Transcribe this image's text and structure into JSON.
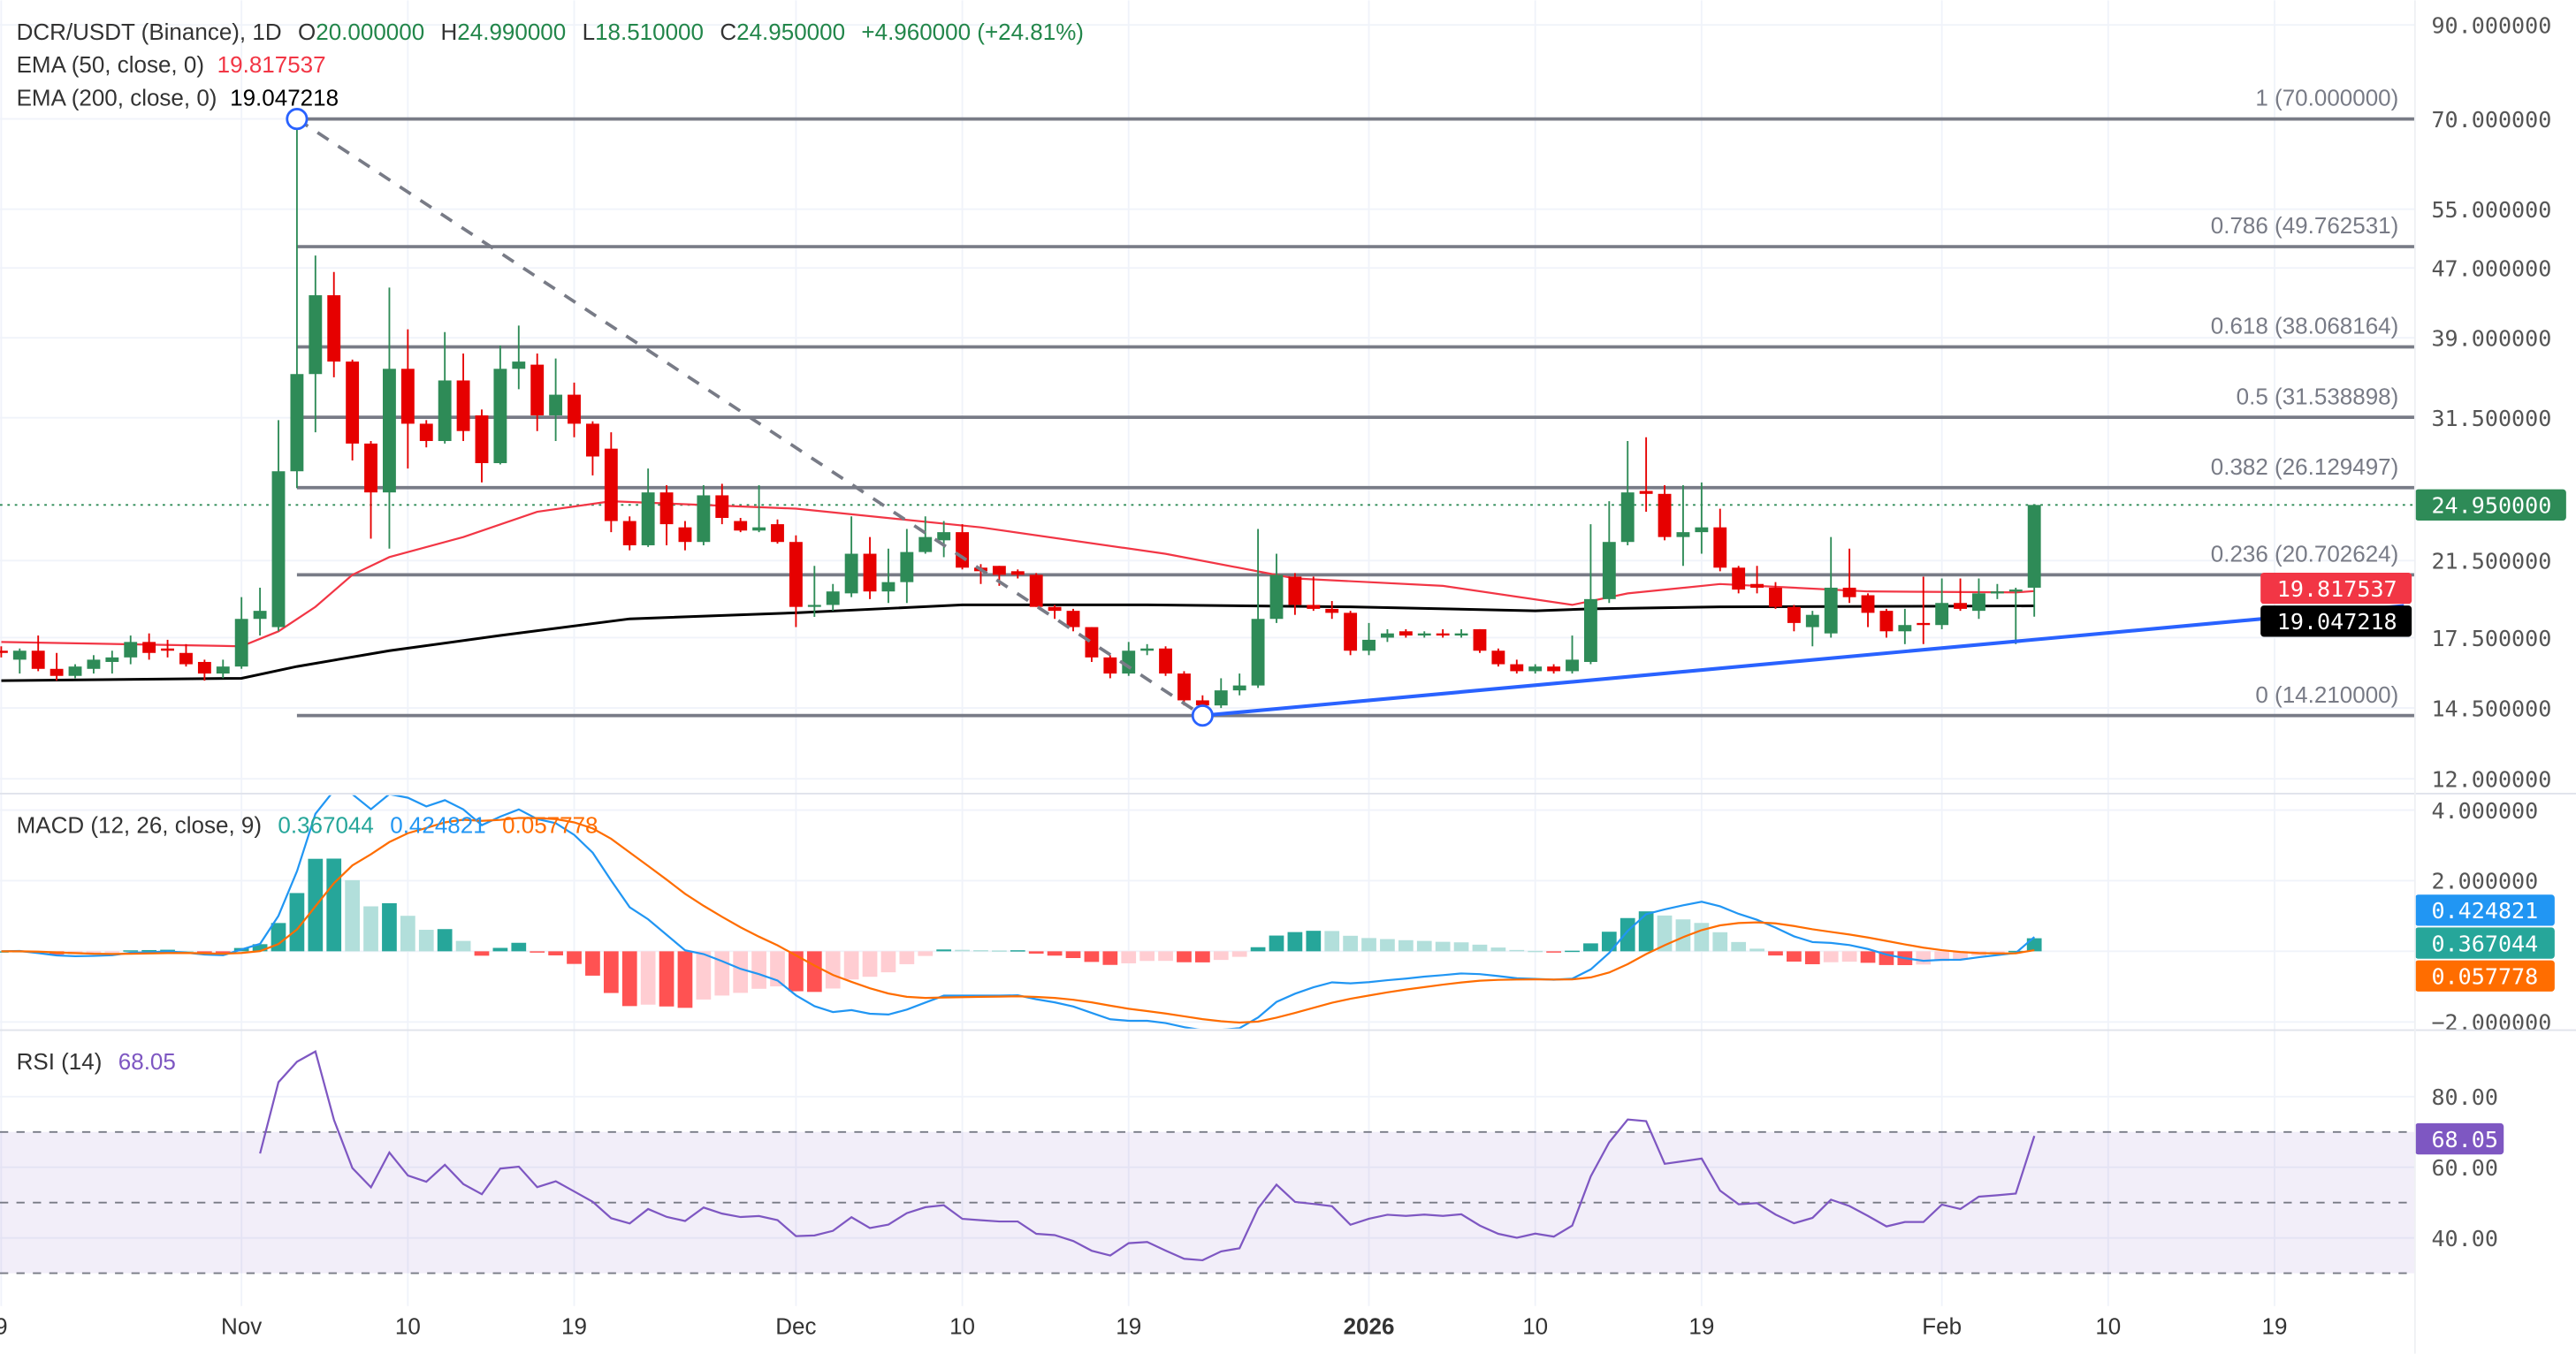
{
  "legend": {
    "symbol": "DCR/USDT (Binance), 1D",
    "o_label": "O",
    "o": "20.000000",
    "h_label": "H",
    "h": "24.990000",
    "l_label": "L",
    "l": "18.510000",
    "c_label": "C",
    "c": "24.950000",
    "change": "+4.960000 (+24.81%)",
    "ema50_label": "EMA (50, close, 0)",
    "ema50_value": "19.817537",
    "ema200_label": "EMA (200, close, 0)",
    "ema200_value": "19.047218",
    "macd_label": "MACD (12, 26, close, 9)",
    "macd_hist": "0.367044",
    "macd_line": "0.424821",
    "macd_signal": "0.057778",
    "rsi_label": "RSI (14)",
    "rsi_value": "68.05"
  },
  "colors": {
    "up": "#2e8b57",
    "down": "#e60000",
    "ema50": "#f23645",
    "ema200": "#000000",
    "macd": "#2196f3",
    "signal": "#ff6d00",
    "hist_up": "#26a69a",
    "hist_up_light": "#b2dfdb",
    "hist_down": "#ff5252",
    "hist_down_light": "#ffcdd2",
    "rsi": "#7e57c2",
    "fib": "#787b86",
    "trend": "#2962ff"
  },
  "price_axis": {
    "scale": "log",
    "ticks": [
      {
        "label": "90.000000",
        "value": 90
      },
      {
        "label": "70.000000",
        "value": 70
      },
      {
        "label": "55.000000",
        "value": 55
      },
      {
        "label": "47.000000",
        "value": 47
      },
      {
        "label": "39.000000",
        "value": 39
      },
      {
        "label": "31.500000",
        "value": 31.5
      },
      {
        "label": "21.500000",
        "value": 21.5
      },
      {
        "label": "17.500000",
        "value": 17.5
      },
      {
        "label": "14.500000",
        "value": 14.5
      },
      {
        "label": "12.000000",
        "value": 12
      }
    ],
    "badges": [
      {
        "label": "24.950000",
        "value": 24.95,
        "color": "#2e8b57"
      },
      {
        "label": "19.817537",
        "value": 19.817537,
        "color": "#f23645"
      },
      {
        "label": "19.047218",
        "value": 19.047218,
        "color": "#000000"
      }
    ]
  },
  "macd_axis": {
    "ticks": [
      {
        "label": "4.000000",
        "value": 4
      },
      {
        "label": "2.000000",
        "value": 2
      },
      {
        "label": "−2.000000",
        "value": -2
      }
    ],
    "badges": [
      {
        "label": "0.424821",
        "color": "#2196f3"
      },
      {
        "label": "0.367044",
        "color": "#26a69a"
      },
      {
        "label": "0.057778",
        "color": "#ff6d00"
      }
    ]
  },
  "rsi_axis": {
    "ticks": [
      {
        "label": "80.00",
        "value": 80
      },
      {
        "label": "60.00",
        "value": 60
      },
      {
        "label": "40.00",
        "value": 40
      }
    ],
    "bands": [
      70,
      50,
      30
    ],
    "badge": {
      "label": "68.05",
      "value": 68.05,
      "color": "#7e57c2"
    }
  },
  "time_axis": [
    {
      "label": "9",
      "date": "2025-10-19"
    },
    {
      "label": "Nov",
      "date": "2025-11-01"
    },
    {
      "label": "10",
      "date": "2025-11-10"
    },
    {
      "label": "19",
      "date": "2025-11-19"
    },
    {
      "label": "Dec",
      "date": "2025-12-01"
    },
    {
      "label": "10",
      "date": "2025-12-10"
    },
    {
      "label": "19",
      "date": "2025-12-19"
    },
    {
      "label": "2026",
      "date": "2026-01-01",
      "bold": true
    },
    {
      "label": "10",
      "date": "2026-01-10"
    },
    {
      "label": "19",
      "date": "2026-01-19"
    },
    {
      "label": "Feb",
      "date": "2026-02-01"
    },
    {
      "label": "10",
      "date": "2026-02-10"
    },
    {
      "label": "19",
      "date": "2026-02-19"
    }
  ],
  "fib_levels": [
    {
      "label": "1 (70.000000)",
      "value": 70
    },
    {
      "label": "0.786 (49.762531)",
      "value": 49.762531
    },
    {
      "label": "0.618 (38.068164)",
      "value": 38.068164
    },
    {
      "label": "0.5 (31.538898)",
      "value": 31.538898
    },
    {
      "label": "0.382 (26.129497)",
      "value": 26.129497
    },
    {
      "label": "0.236 (20.702624)",
      "value": 20.702624
    },
    {
      "label": "0 (14.210000)",
      "value": 14.21
    }
  ],
  "drawings": {
    "fib_start": {
      "date": "2025-11-04",
      "value": 70
    },
    "fib_end": {
      "date": "2025-12-23",
      "value": 14.21
    },
    "trendline": {
      "from": {
        "date": "2025-12-23",
        "value": 14.21
      },
      "to": {
        "date": "2026-02-26",
        "value": 19.05
      }
    }
  },
  "chart_data": {
    "type": "candlestick",
    "title": "DCR/USDT (Binance), 1D",
    "yscale": "log",
    "ylim": [
      12,
      90
    ],
    "candles": [
      [
        "2025-10-19",
        16.9,
        17.1,
        16.6,
        16.8
      ],
      [
        "2025-10-20",
        16.5,
        17.0,
        15.9,
        16.9
      ],
      [
        "2025-10-21",
        16.9,
        17.6,
        16.0,
        16.1
      ],
      [
        "2025-10-22",
        16.1,
        16.8,
        15.6,
        15.8
      ],
      [
        "2025-10-23",
        15.8,
        16.3,
        15.7,
        16.2
      ],
      [
        "2025-10-24",
        16.1,
        16.7,
        15.9,
        16.5
      ],
      [
        "2025-10-25",
        16.4,
        16.9,
        15.9,
        16.6
      ],
      [
        "2025-10-26",
        16.6,
        17.6,
        16.3,
        17.3
      ],
      [
        "2025-10-27",
        17.3,
        17.7,
        16.5,
        16.8
      ],
      [
        "2025-10-28",
        17.0,
        17.4,
        16.6,
        16.9
      ],
      [
        "2025-10-29",
        16.8,
        17.2,
        16.2,
        16.3
      ],
      [
        "2025-10-30",
        16.4,
        16.5,
        15.6,
        15.9
      ],
      [
        "2025-10-31",
        15.9,
        16.5,
        15.7,
        16.2
      ],
      [
        "2025-11-01",
        16.2,
        19.5,
        16.1,
        18.4
      ],
      [
        "2025-11-02",
        18.4,
        20.0,
        17.6,
        18.8
      ],
      [
        "2025-11-03",
        18.0,
        31.3,
        17.8,
        27.3
      ],
      [
        "2025-11-04",
        27.3,
        70.0,
        26.1,
        35.4
      ],
      [
        "2025-11-05",
        35.4,
        48.6,
        30.3,
        43.7
      ],
      [
        "2025-11-06",
        43.7,
        46.5,
        35.1,
        36.6
      ],
      [
        "2025-11-07",
        36.6,
        36.8,
        28.1,
        29.4
      ],
      [
        "2025-11-08",
        29.4,
        29.6,
        22.8,
        25.8
      ],
      [
        "2025-11-09",
        25.8,
        44.6,
        22.2,
        35.9
      ],
      [
        "2025-11-10",
        35.9,
        39.9,
        27.5,
        31.0
      ],
      [
        "2025-11-11",
        31.0,
        31.3,
        29.1,
        29.6
      ],
      [
        "2025-11-12",
        29.6,
        39.6,
        29.4,
        34.8
      ],
      [
        "2025-11-13",
        34.8,
        37.4,
        29.6,
        30.4
      ],
      [
        "2025-11-14",
        31.7,
        32.2,
        26.5,
        27.9
      ],
      [
        "2025-11-15",
        27.9,
        38.2,
        27.8,
        35.9
      ],
      [
        "2025-11-16",
        35.9,
        40.3,
        34.0,
        36.6
      ],
      [
        "2025-11-17",
        36.3,
        37.4,
        30.4,
        31.7
      ],
      [
        "2025-11-18",
        31.7,
        36.9,
        29.6,
        33.5
      ],
      [
        "2025-11-19",
        33.5,
        34.6,
        29.9,
        31.0
      ],
      [
        "2025-11-20",
        31.0,
        31.2,
        27.0,
        28.4
      ],
      [
        "2025-11-21",
        29.0,
        30.3,
        23.2,
        23.9
      ],
      [
        "2025-11-22",
        23.9,
        24.2,
        22.1,
        22.4
      ],
      [
        "2025-11-23",
        22.4,
        27.5,
        22.3,
        25.8
      ],
      [
        "2025-11-24",
        25.8,
        26.3,
        22.4,
        23.7
      ],
      [
        "2025-11-25",
        23.5,
        23.9,
        22.1,
        22.6
      ],
      [
        "2025-11-26",
        22.6,
        26.3,
        22.4,
        25.6
      ],
      [
        "2025-11-27",
        25.6,
        26.4,
        23.7,
        24.1
      ],
      [
        "2025-11-28",
        23.9,
        24.1,
        23.2,
        23.3
      ],
      [
        "2025-11-29",
        23.3,
        26.3,
        23.2,
        23.5
      ],
      [
        "2025-11-30",
        23.7,
        24.0,
        22.5,
        22.6
      ],
      [
        "2025-12-01",
        22.6,
        23.0,
        18.0,
        19.0
      ],
      [
        "2025-12-02",
        19.0,
        21.2,
        18.5,
        19.1
      ],
      [
        "2025-12-03",
        19.1,
        20.2,
        18.8,
        19.8
      ],
      [
        "2025-12-04",
        19.7,
        24.2,
        19.5,
        21.9
      ],
      [
        "2025-12-05",
        21.9,
        22.9,
        19.4,
        19.8
      ],
      [
        "2025-12-06",
        19.8,
        22.2,
        19.2,
        20.3
      ],
      [
        "2025-12-07",
        20.3,
        23.4,
        19.2,
        22.0
      ],
      [
        "2025-12-08",
        22.0,
        24.2,
        21.9,
        22.9
      ],
      [
        "2025-12-09",
        22.7,
        23.9,
        21.7,
        23.2
      ],
      [
        "2025-12-10",
        23.2,
        23.7,
        21.0,
        21.1
      ],
      [
        "2025-12-11",
        21.1,
        21.3,
        20.2,
        20.9
      ],
      [
        "2025-12-12",
        21.2,
        21.2,
        20.1,
        20.7
      ],
      [
        "2025-12-13",
        20.9,
        21.0,
        20.5,
        20.7
      ],
      [
        "2025-12-14",
        20.7,
        20.8,
        19.0,
        19.0
      ],
      [
        "2025-12-15",
        19.0,
        19.1,
        18.4,
        18.8
      ],
      [
        "2025-12-16",
        18.8,
        18.9,
        17.8,
        18.0
      ],
      [
        "2025-12-17",
        18.0,
        18.0,
        16.4,
        16.6
      ],
      [
        "2025-12-18",
        16.6,
        16.7,
        15.7,
        15.9
      ],
      [
        "2025-12-19",
        15.9,
        17.3,
        15.8,
        16.9
      ],
      [
        "2025-12-20",
        16.9,
        17.2,
        16.7,
        17.0
      ],
      [
        "2025-12-21",
        17.0,
        17.1,
        15.8,
        15.9
      ],
      [
        "2025-12-22",
        15.9,
        16.0,
        14.6,
        14.8
      ],
      [
        "2025-12-23",
        14.8,
        15.0,
        14.21,
        14.6
      ],
      [
        "2025-12-24",
        14.6,
        15.7,
        14.5,
        15.2
      ],
      [
        "2025-12-25",
        15.2,
        15.9,
        15.0,
        15.4
      ],
      [
        "2025-12-26",
        15.4,
        23.4,
        15.3,
        18.4
      ],
      [
        "2025-12-27",
        18.4,
        21.9,
        18.2,
        20.7
      ],
      [
        "2025-12-28",
        20.6,
        20.8,
        18.6,
        19.1
      ],
      [
        "2025-12-29",
        19.1,
        20.6,
        18.8,
        18.9
      ],
      [
        "2025-12-30",
        18.9,
        19.3,
        18.4,
        18.7
      ],
      [
        "2025-12-31",
        18.7,
        18.8,
        16.7,
        16.9
      ],
      [
        "2026-01-01",
        16.9,
        18.2,
        16.7,
        17.4
      ],
      [
        "2026-01-02",
        17.5,
        17.9,
        17.3,
        17.7
      ],
      [
        "2026-01-03",
        17.8,
        17.9,
        17.5,
        17.6
      ],
      [
        "2026-01-04",
        17.6,
        17.8,
        17.5,
        17.7
      ],
      [
        "2026-01-05",
        17.7,
        17.9,
        17.5,
        17.6
      ],
      [
        "2026-01-06",
        17.6,
        17.9,
        17.5,
        17.7
      ],
      [
        "2026-01-07",
        17.9,
        17.9,
        16.8,
        16.9
      ],
      [
        "2026-01-08",
        16.9,
        17.0,
        16.2,
        16.3
      ],
      [
        "2026-01-09",
        16.3,
        16.5,
        15.9,
        16.0
      ],
      [
        "2026-01-10",
        16.0,
        16.3,
        15.9,
        16.2
      ],
      [
        "2026-01-11",
        16.2,
        16.3,
        15.9,
        16.0
      ],
      [
        "2026-01-12",
        16.0,
        17.6,
        15.9,
        16.5
      ],
      [
        "2026-01-13",
        16.4,
        23.7,
        16.3,
        19.4
      ],
      [
        "2026-01-14",
        19.4,
        25.2,
        19.2,
        22.6
      ],
      [
        "2026-01-15",
        22.6,
        29.6,
        22.4,
        25.8
      ],
      [
        "2026-01-16",
        25.9,
        29.9,
        24.5,
        25.7
      ],
      [
        "2026-01-17",
        25.7,
        26.3,
        22.7,
        22.9
      ],
      [
        "2026-01-18",
        22.9,
        26.3,
        21.2,
        23.2
      ],
      [
        "2026-01-19",
        23.2,
        26.5,
        21.9,
        23.5
      ],
      [
        "2026-01-20",
        23.5,
        24.7,
        20.9,
        21.1
      ],
      [
        "2026-01-21",
        21.1,
        21.2,
        19.7,
        19.9
      ],
      [
        "2026-01-22",
        20.2,
        21.2,
        19.7,
        20.0
      ],
      [
        "2026-01-23",
        20.0,
        20.3,
        18.9,
        19.0
      ],
      [
        "2026-01-24",
        19.0,
        19.1,
        17.8,
        18.2
      ],
      [
        "2026-01-25",
        18.0,
        18.8,
        17.1,
        18.6
      ],
      [
        "2026-01-26",
        17.7,
        22.9,
        17.5,
        20.0
      ],
      [
        "2026-01-27",
        20.0,
        22.2,
        19.2,
        19.5
      ],
      [
        "2026-01-28",
        19.6,
        19.7,
        18.0,
        18.7
      ],
      [
        "2026-01-29",
        18.8,
        18.9,
        17.5,
        17.8
      ],
      [
        "2026-01-30",
        17.8,
        18.9,
        17.2,
        18.1
      ],
      [
        "2026-01-31",
        18.2,
        20.6,
        17.2,
        18.1
      ],
      [
        "2026-02-01",
        18.1,
        20.5,
        17.9,
        19.2
      ],
      [
        "2026-02-02",
        19.2,
        20.5,
        18.8,
        18.9
      ],
      [
        "2026-02-03",
        18.8,
        20.5,
        18.4,
        19.7
      ],
      [
        "2026-02-04",
        19.8,
        20.2,
        19.4,
        19.8
      ],
      [
        "2026-02-05",
        19.8,
        20.0,
        17.2,
        19.9
      ],
      [
        "2026-02-06",
        20.0,
        24.99,
        18.51,
        24.95
      ]
    ],
    "ema50": [
      [
        "2025-10-19",
        17.3
      ],
      [
        "2025-11-01",
        17.1
      ],
      [
        "2025-11-03",
        17.8
      ],
      [
        "2025-11-05",
        19.0
      ],
      [
        "2025-11-07",
        20.7
      ],
      [
        "2025-11-09",
        21.7
      ],
      [
        "2025-11-13",
        22.9
      ],
      [
        "2025-11-17",
        24.5
      ],
      [
        "2025-11-21",
        25.2
      ],
      [
        "2025-12-01",
        24.7
      ],
      [
        "2025-12-11",
        23.5
      ],
      [
        "2025-12-21",
        21.9
      ],
      [
        "2025-12-28",
        20.5
      ],
      [
        "2026-01-05",
        20.1
      ],
      [
        "2026-01-12",
        19.1
      ],
      [
        "2026-01-15",
        19.7
      ],
      [
        "2026-01-20",
        20.2
      ],
      [
        "2026-01-28",
        19.8
      ],
      [
        "2026-02-05",
        19.75
      ],
      [
        "2026-02-06",
        19.817537
      ]
    ],
    "ema200": [
      [
        "2025-10-19",
        15.6
      ],
      [
        "2025-11-01",
        15.7
      ],
      [
        "2025-11-04",
        16.2
      ],
      [
        "2025-11-09",
        16.9
      ],
      [
        "2025-11-15",
        17.6
      ],
      [
        "2025-11-22",
        18.4
      ],
      [
        "2025-12-01",
        18.7
      ],
      [
        "2025-12-10",
        19.1
      ],
      [
        "2025-12-20",
        19.1
      ],
      [
        "2025-12-31",
        19.0
      ],
      [
        "2026-01-10",
        18.8
      ],
      [
        "2026-01-13",
        18.9
      ],
      [
        "2026-01-20",
        19.0
      ],
      [
        "2026-02-06",
        19.047218
      ]
    ],
    "last_price": 24.95
  }
}
